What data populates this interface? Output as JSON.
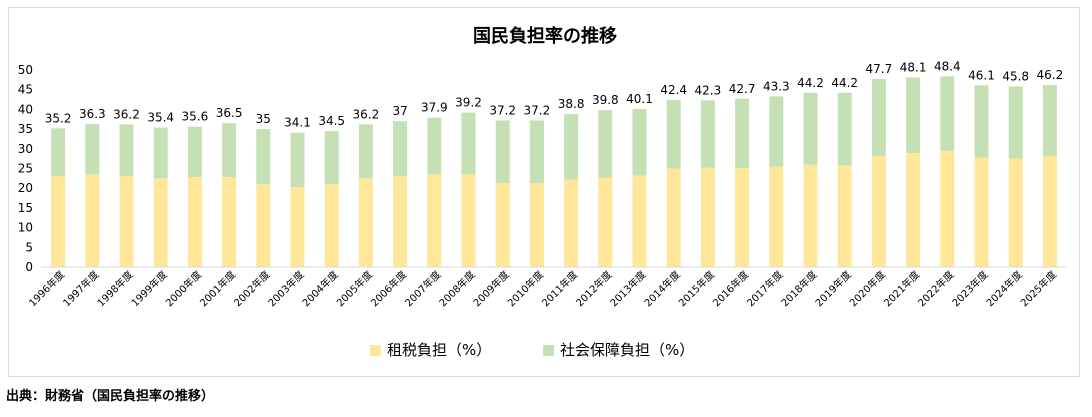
{
  "colors": {
    "tax": "#ffe699",
    "social": "#c5e0b4",
    "grid": "#d9d9d9",
    "border": "#d9d9d9",
    "text": "#000000"
  },
  "source_note": "出典：財務省（国民負担率の推移）",
  "chart_data": {
    "type": "bar",
    "stacked": true,
    "title": "国民負担率の推移",
    "categories": [
      "1996年度",
      "1997年度",
      "1998年度",
      "1999年度",
      "2000年度",
      "2001年度",
      "2002年度",
      "2003年度",
      "2004年度",
      "2005年度",
      "2006年度",
      "2007年度",
      "2008年度",
      "2009年度",
      "2010年度",
      "2011年度",
      "2012年度",
      "2013年度",
      "2014年度",
      "2015年度",
      "2016年度",
      "2017年度",
      "2018年度",
      "2019年度",
      "2020年度",
      "2021年度",
      "2022年度",
      "2023年度",
      "2024年度",
      "2025年度"
    ],
    "series": [
      {
        "name": "租税負担（%）",
        "values": [
          23.0,
          23.5,
          23.0,
          22.5,
          22.8,
          22.8,
          21.0,
          20.3,
          21.0,
          22.5,
          23.0,
          23.5,
          23.5,
          21.3,
          21.3,
          22.2,
          22.7,
          23.2,
          25.0,
          25.2,
          25.1,
          25.5,
          26.0,
          25.8,
          28.2,
          28.9,
          29.5,
          27.8,
          27.5,
          28.2
        ]
      },
      {
        "name": "社会保障負担（%）",
        "values": [
          12.2,
          12.8,
          13.2,
          12.9,
          12.8,
          13.7,
          14.0,
          13.8,
          13.5,
          13.7,
          14.0,
          14.4,
          15.7,
          15.9,
          15.9,
          16.6,
          17.1,
          16.9,
          17.4,
          17.1,
          17.6,
          17.8,
          18.2,
          18.4,
          19.5,
          19.2,
          18.9,
          18.3,
          18.3,
          18.0
        ]
      }
    ],
    "totals": [
      "35.2",
      "36.3",
      "36.2",
      "35.4",
      "35.6",
      "36.5",
      "35",
      "34.1",
      "34.5",
      "36.2",
      "37",
      "37.9",
      "39.2",
      "37.2",
      "37.2",
      "38.8",
      "39.8",
      "40.1",
      "42.4",
      "42.3",
      "42.7",
      "43.3",
      "44.2",
      "44.2",
      "47.7",
      "48.1",
      "48.4",
      "46.1",
      "45.8",
      "46.2"
    ],
    "yticks": [
      "0",
      "5",
      "10",
      "15",
      "20",
      "25",
      "30",
      "35",
      "40",
      "45",
      "50"
    ],
    "ylim": [
      0,
      50
    ],
    "grid": false,
    "legend": "bottom"
  }
}
